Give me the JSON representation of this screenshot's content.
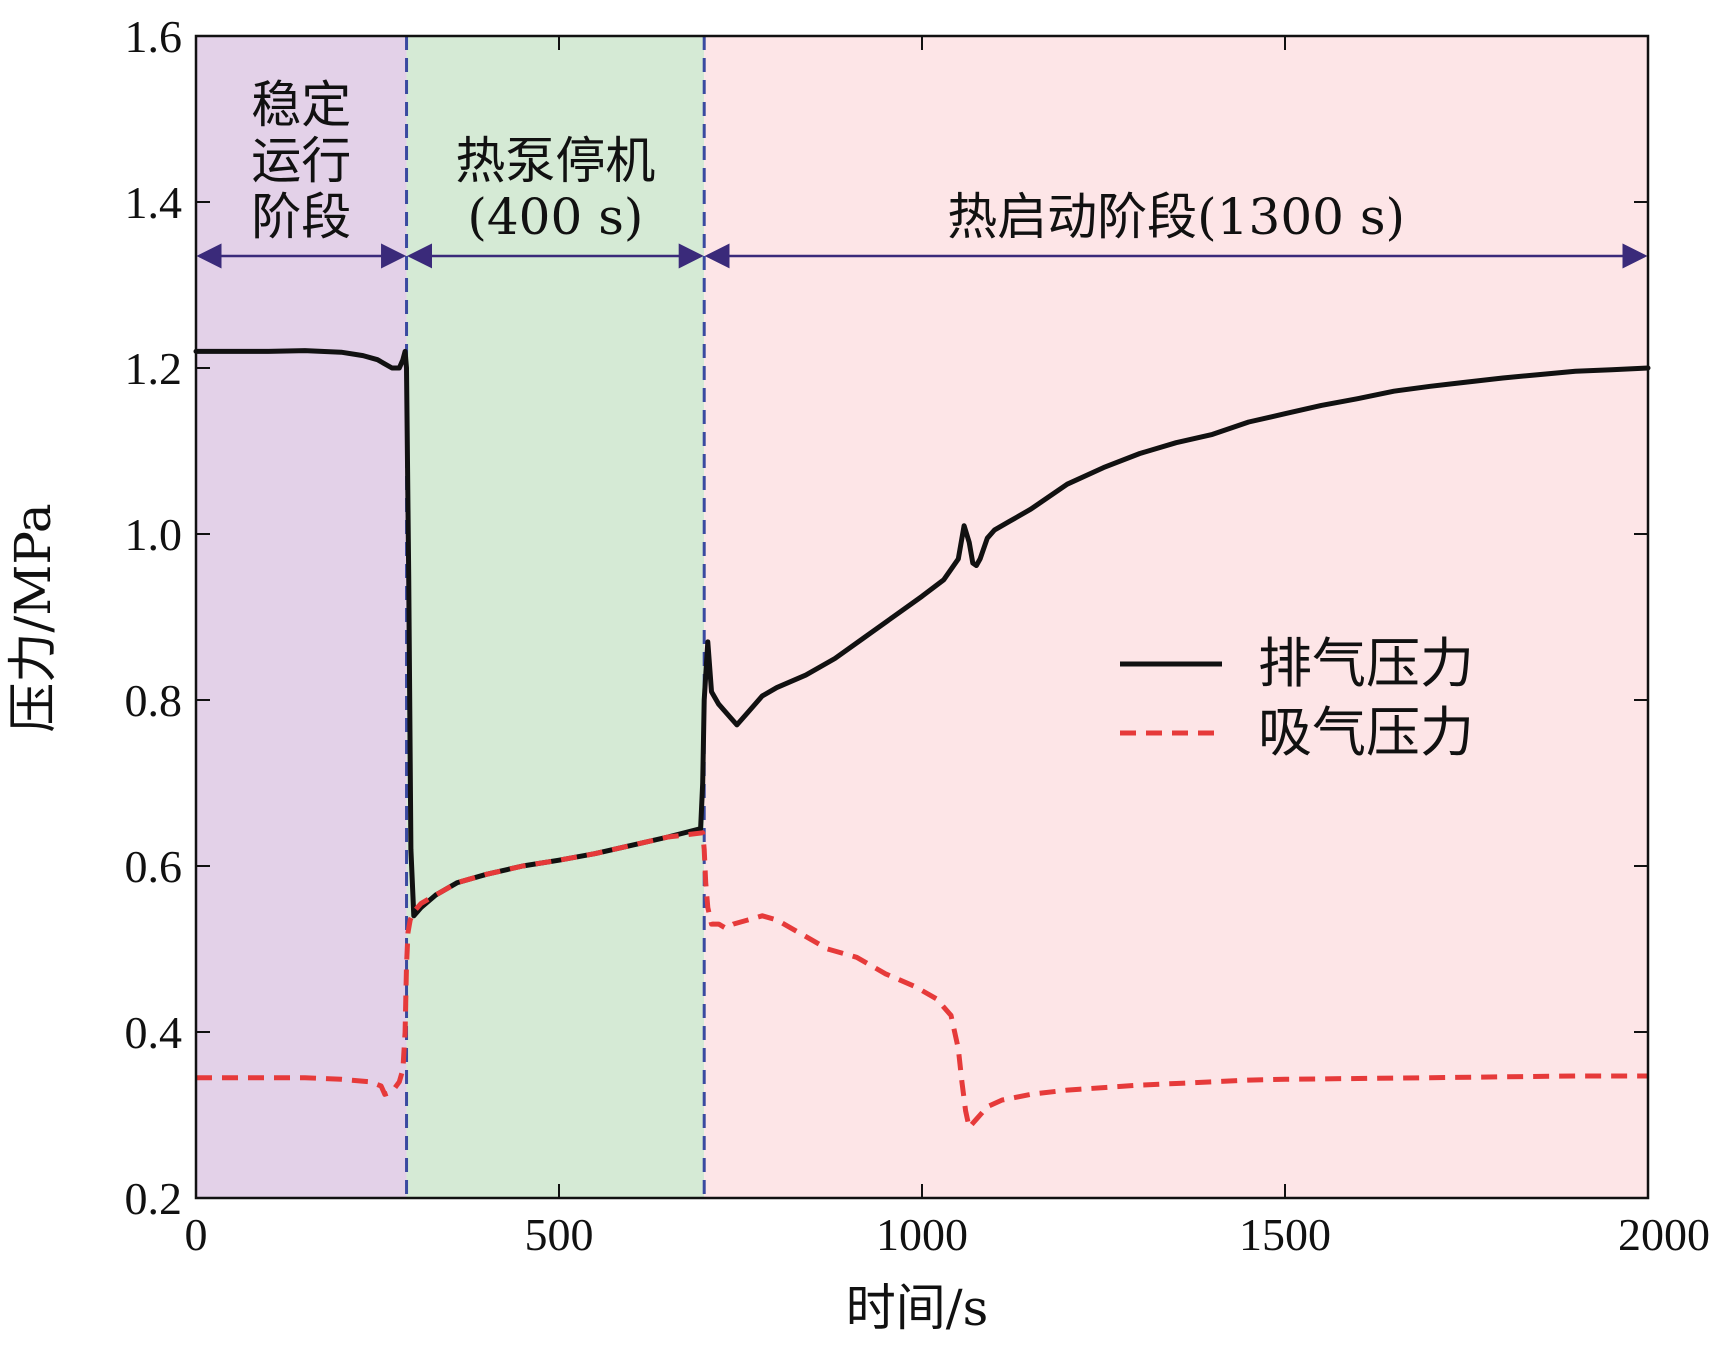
{
  "chart_data": {
    "type": "line",
    "title": "",
    "xlabel": "时间/s",
    "ylabel": "压力/MPa",
    "xlim": [
      0,
      2000
    ],
    "ylim": [
      0.2,
      1.6
    ],
    "x_ticks": [
      0,
      500,
      1000,
      1500,
      2000
    ],
    "x_tick_labels": [
      "0",
      "500",
      "1000",
      "1500",
      "2000"
    ],
    "y_ticks": [
      0.2,
      0.4,
      0.6,
      0.8,
      1.0,
      1.2,
      1.4,
      1.6
    ],
    "y_tick_labels": [
      "0.2",
      "0.4",
      "0.6",
      "0.8",
      "1.0",
      "1.2",
      "1.4",
      "1.6"
    ],
    "grid": false,
    "legend_position": "center-right",
    "regions": [
      {
        "name": "stable",
        "start": 0,
        "end": 290,
        "color": "#e3d1e8",
        "label_lines": [
          "稳定",
          "运行",
          "阶段"
        ]
      },
      {
        "name": "shutdown",
        "start": 290,
        "end": 700,
        "color": "#d5ead5",
        "label_lines": [
          "热泵停机",
          "(400 s)"
        ]
      },
      {
        "name": "hotstart",
        "start": 700,
        "end": 2000,
        "color": "#fde5e7",
        "label_lines": [
          "热启动阶段(1300 s)"
        ]
      }
    ],
    "boundaries": [
      290,
      700
    ],
    "boundary_color": "#3a4aa0",
    "arrow_y": 1.335,
    "arrow_color": "#3a2a7a",
    "series": [
      {
        "name": "排气压力",
        "style": "solid",
        "color": "#111111",
        "x": [
          0,
          50,
          100,
          150,
          200,
          230,
          250,
          270,
          280,
          285,
          288,
          290,
          293,
          296,
          300,
          310,
          330,
          360,
          400,
          450,
          500,
          550,
          600,
          650,
          695,
          698,
          700,
          705,
          710,
          720,
          735,
          745,
          760,
          780,
          800,
          840,
          880,
          920,
          960,
          1000,
          1030,
          1050,
          1058,
          1065,
          1070,
          1075,
          1080,
          1090,
          1100,
          1120,
          1150,
          1200,
          1250,
          1300,
          1350,
          1400,
          1450,
          1500,
          1550,
          1600,
          1650,
          1700,
          1750,
          1800,
          1850,
          1900,
          1950,
          2000
        ],
        "y": [
          1.22,
          1.22,
          1.22,
          1.221,
          1.219,
          1.215,
          1.21,
          1.2,
          1.2,
          1.21,
          1.22,
          1.2,
          0.95,
          0.62,
          0.54,
          0.55,
          0.565,
          0.58,
          0.59,
          0.6,
          0.607,
          0.615,
          0.625,
          0.635,
          0.645,
          0.7,
          0.8,
          0.87,
          0.81,
          0.795,
          0.78,
          0.77,
          0.785,
          0.805,
          0.815,
          0.83,
          0.85,
          0.875,
          0.9,
          0.925,
          0.945,
          0.97,
          1.01,
          0.99,
          0.965,
          0.962,
          0.97,
          0.995,
          1.005,
          1.015,
          1.03,
          1.06,
          1.08,
          1.097,
          1.11,
          1.12,
          1.135,
          1.145,
          1.155,
          1.163,
          1.172,
          1.178,
          1.183,
          1.188,
          1.192,
          1.196,
          1.198,
          1.2
        ]
      },
      {
        "name": "吸气压力",
        "style": "dashed",
        "color": "#e63a3a",
        "x": [
          0,
          50,
          100,
          150,
          200,
          240,
          255,
          260,
          270,
          280,
          285,
          288,
          290,
          292,
          295,
          300,
          310,
          330,
          360,
          400,
          450,
          500,
          550,
          600,
          650,
          698,
          700,
          702,
          705,
          710,
          720,
          730,
          740,
          760,
          780,
          800,
          830,
          870,
          910,
          950,
          990,
          1020,
          1040,
          1050,
          1055,
          1060,
          1065,
          1070,
          1075,
          1080,
          1090,
          1110,
          1150,
          1200,
          1250,
          1300,
          1350,
          1400,
          1450,
          1500,
          1600,
          1700,
          1800,
          1900,
          2000
        ],
        "y": [
          0.345,
          0.345,
          0.345,
          0.345,
          0.343,
          0.34,
          0.335,
          0.325,
          0.328,
          0.34,
          0.355,
          0.4,
          0.48,
          0.52,
          0.535,
          0.545,
          0.555,
          0.565,
          0.58,
          0.59,
          0.6,
          0.607,
          0.615,
          0.625,
          0.635,
          0.64,
          0.62,
          0.58,
          0.55,
          0.53,
          0.53,
          0.525,
          0.53,
          0.535,
          0.54,
          0.535,
          0.52,
          0.5,
          0.49,
          0.47,
          0.455,
          0.44,
          0.42,
          0.38,
          0.34,
          0.305,
          0.285,
          0.29,
          0.295,
          0.3,
          0.31,
          0.318,
          0.325,
          0.33,
          0.333,
          0.336,
          0.338,
          0.34,
          0.342,
          0.343,
          0.344,
          0.345,
          0.346,
          0.347,
          0.347
        ]
      }
    ]
  }
}
